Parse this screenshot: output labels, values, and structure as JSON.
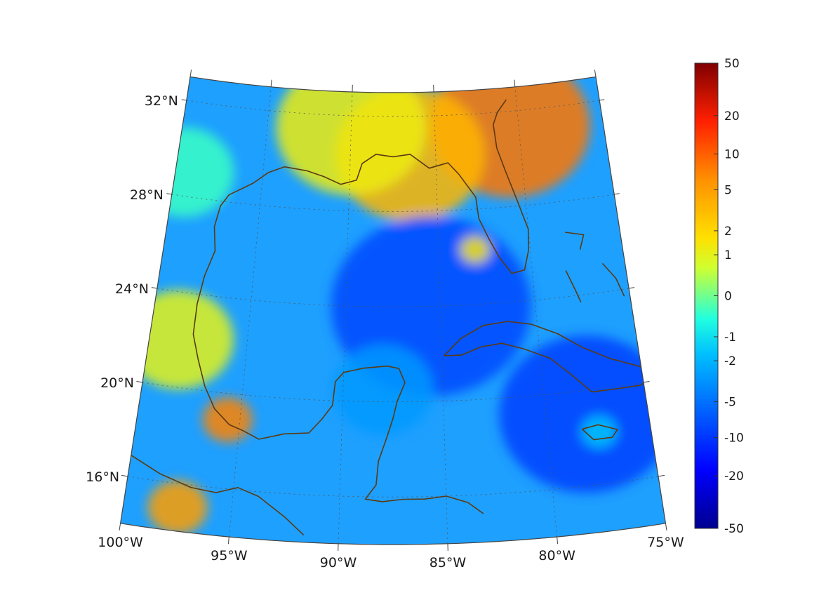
{
  "map": {
    "region": "Gulf of Mexico and Caribbean",
    "lon_range": [
      -100,
      -75
    ],
    "lat_range": [
      14,
      33
    ],
    "lon_ticks": [
      {
        "value": -100,
        "label": "100°W"
      },
      {
        "value": -95,
        "label": "95°W"
      },
      {
        "value": -90,
        "label": "90°W"
      },
      {
        "value": -85,
        "label": "85°W"
      },
      {
        "value": -80,
        "label": "80°W"
      },
      {
        "value": -75,
        "label": "75°W"
      }
    ],
    "lat_ticks": [
      {
        "value": 32,
        "label": "32°N"
      },
      {
        "value": 28,
        "label": "28°N"
      },
      {
        "value": 24,
        "label": "24°N"
      },
      {
        "value": 20,
        "label": "20°N"
      },
      {
        "value": 16,
        "label": "16°N"
      }
    ],
    "graticule": "dotted",
    "coastline_color": "#5b3a12",
    "colormap": "jet",
    "field_blobs": [
      {
        "lon": -80.5,
        "lat": 31.4,
        "value": 8,
        "spread": 3.2
      },
      {
        "lon": -86.5,
        "lat": 30.4,
        "value": 3.5,
        "spread": 3.0
      },
      {
        "lon": -90,
        "lat": 31.5,
        "value": 1.2,
        "spread": 3.0
      },
      {
        "lon": -95.6,
        "lat": 18.9,
        "value": 7,
        "spread": 1.0
      },
      {
        "lon": -97.5,
        "lat": 15.0,
        "value": 5,
        "spread": 1.2
      },
      {
        "lon": -98.5,
        "lat": 22.0,
        "value": 1.0,
        "spread": 2.2
      },
      {
        "lon": -99.5,
        "lat": 29.0,
        "value": -0.3,
        "spread": 2.0
      },
      {
        "lon": -85.5,
        "lat": 24.0,
        "value": -8,
        "spread": 4.0
      },
      {
        "lon": -78.0,
        "lat": 19.0,
        "value": -9,
        "spread": 3.5
      },
      {
        "lon": -88.0,
        "lat": 20.5,
        "value": -3,
        "spread": 2.0
      },
      {
        "lon": -83.0,
        "lat": 26.3,
        "value": 1.5,
        "spread": 0.6
      },
      {
        "lon": -77.5,
        "lat": 18.2,
        "value": -1.5,
        "spread": 0.7
      }
    ]
  },
  "colorbar": {
    "ticks": [
      {
        "value": 50,
        "label": "50"
      },
      {
        "value": 20,
        "label": "20"
      },
      {
        "value": 10,
        "label": "10"
      },
      {
        "value": 5,
        "label": "5"
      },
      {
        "value": 2,
        "label": "2"
      },
      {
        "value": 1,
        "label": "1"
      },
      {
        "value": 0,
        "label": "0"
      },
      {
        "value": -1,
        "label": "-1"
      },
      {
        "value": -2,
        "label": "-2"
      },
      {
        "value": -5,
        "label": "-5"
      },
      {
        "value": -10,
        "label": "-10"
      },
      {
        "value": -20,
        "label": "-20"
      },
      {
        "value": -50,
        "label": "-50"
      }
    ]
  }
}
